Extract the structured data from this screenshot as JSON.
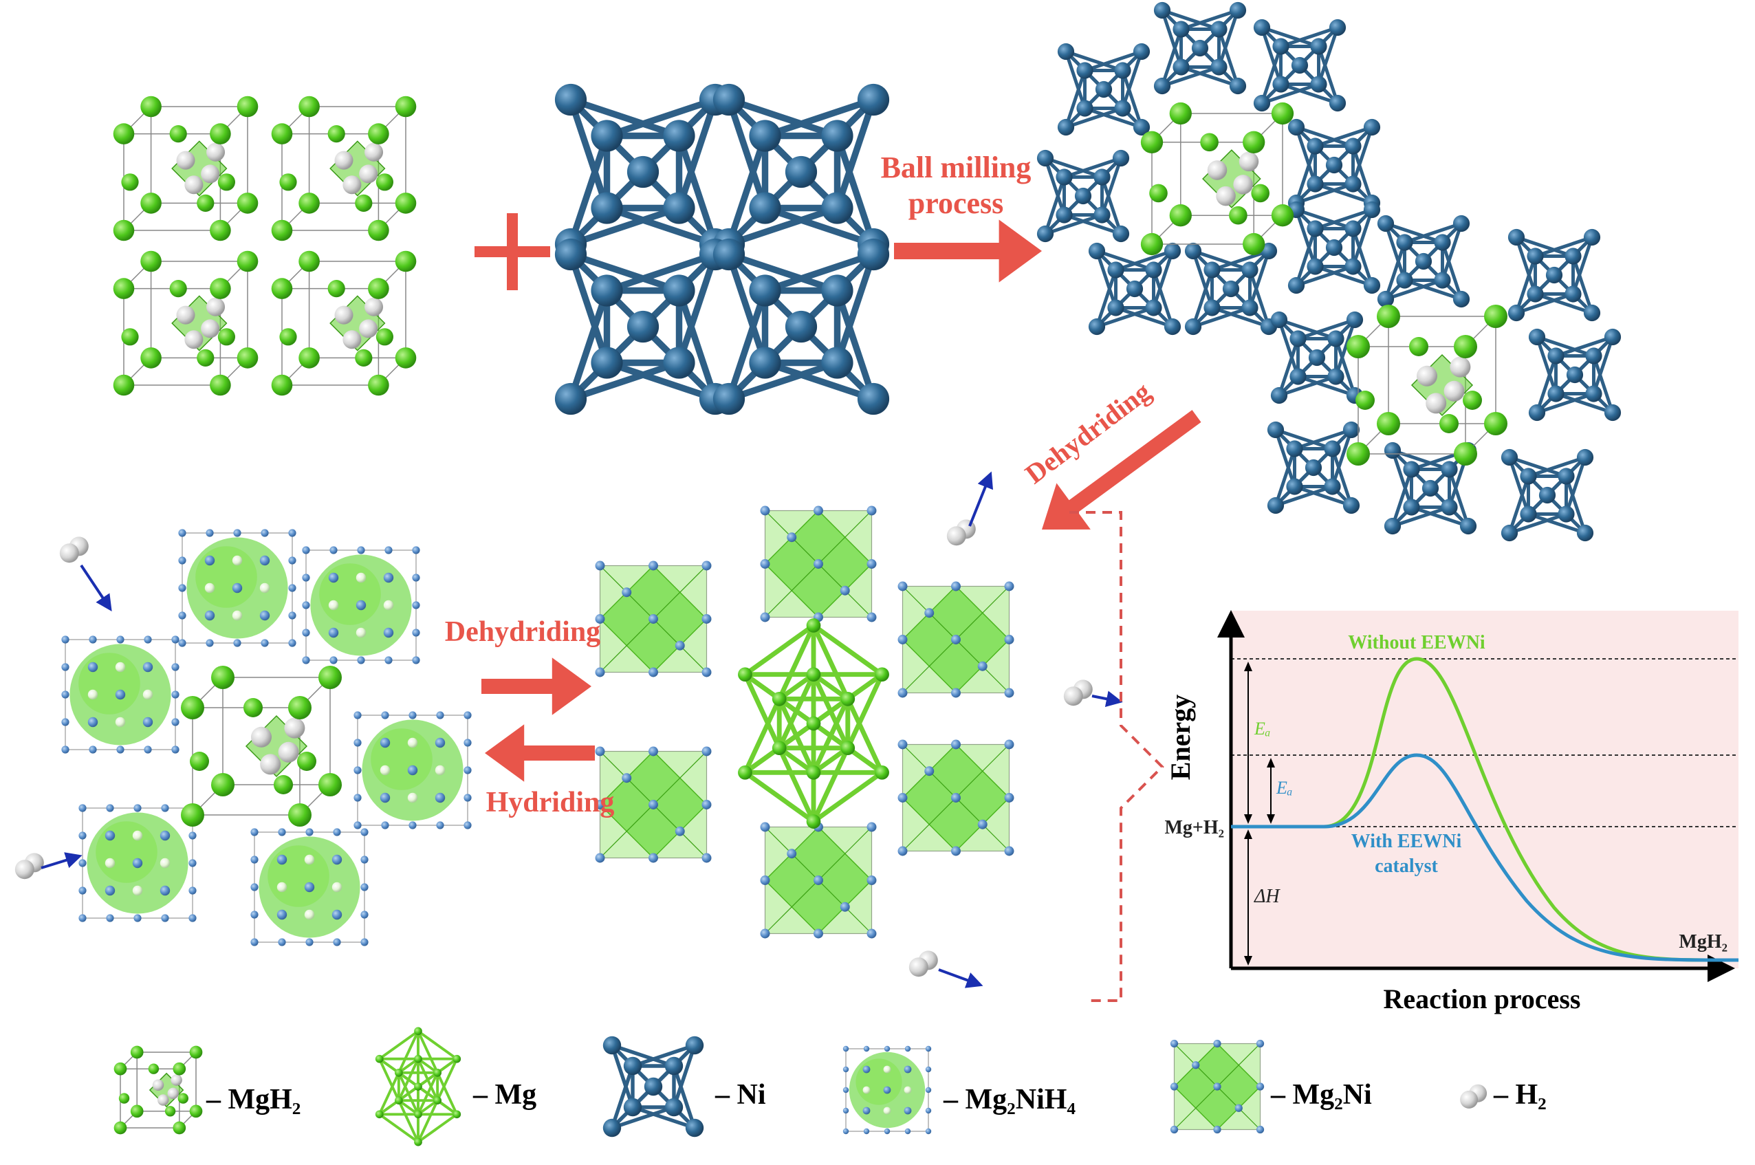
{
  "process": {
    "ball_milling": [
      "Ball milling",
      "process"
    ],
    "dehydriding_top": "Dehydriding",
    "dehydriding": "Dehydriding",
    "hydriding": "Hydriding"
  },
  "chart_data": {
    "type": "line",
    "xlabel": "Reaction process",
    "ylabel": "Energy",
    "series": [
      {
        "name": "Without EEWNi",
        "color": "#6fcf2f"
      },
      {
        "name": "With EEWNi catalyst",
        "color": "#2f8fc8"
      }
    ],
    "annotations": {
      "reactant": "Mg+H₂",
      "product": "MgH₂",
      "ea_without": "Eₐ",
      "ea_with": "Eₐ",
      "delta_h": "ΔH",
      "without_label": "Without EEWNi",
      "with_label_1": "With EEWNi",
      "with_label_2": "catalyst"
    },
    "background": "#fbe8e8"
  },
  "legend": [
    {
      "label": "– MgH₂"
    },
    {
      "label": "– Mg"
    },
    {
      "label": "– Ni"
    },
    {
      "label": "– Mg₂NiH₄"
    },
    {
      "label": "– Mg₂Ni"
    },
    {
      "label": "– H₂"
    }
  ],
  "colors": {
    "arrow": "#e8554a",
    "mg_green": "#5fd02a",
    "ni_blue": "#2e5f86",
    "h_white": "#d9d9d9",
    "small_arrow": "#1a2fb0"
  }
}
